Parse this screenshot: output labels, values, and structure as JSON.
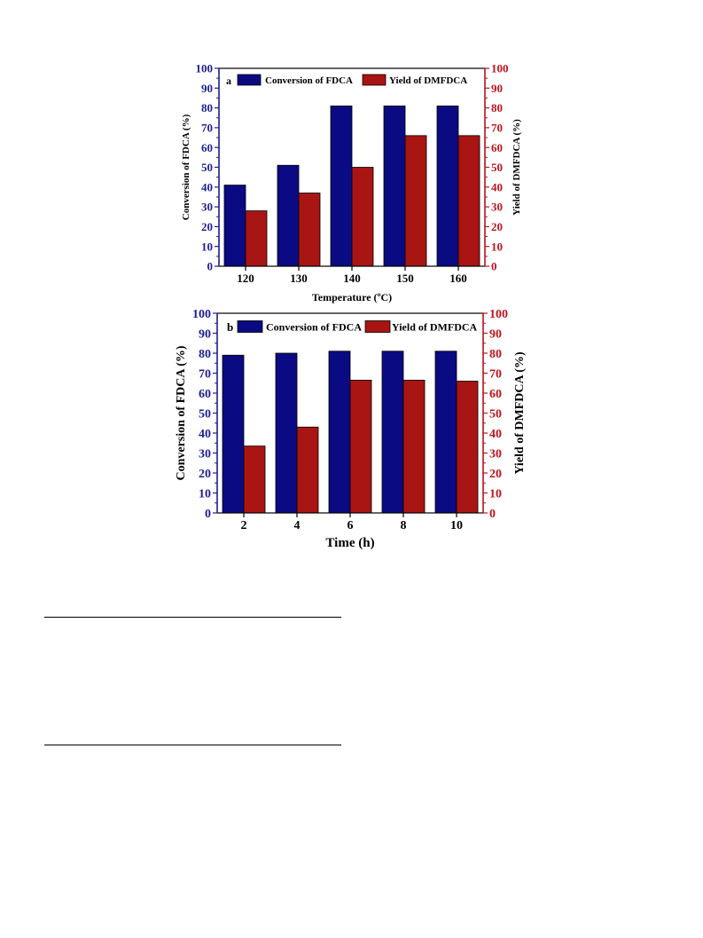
{
  "colors": {
    "left_axis": "#1e1e96",
    "right_axis": "#c0141e",
    "conversion_bar": "#0a0a82",
    "yield_bar": "#a81512"
  },
  "chart_data": [
    {
      "type": "bar",
      "panel_label": "a",
      "categories": [
        "120",
        "130",
        "140",
        "150",
        "160"
      ],
      "series": [
        {
          "name": "Conversion of FDCA",
          "axis": "left",
          "values": [
            41,
            51,
            81,
            81,
            81
          ]
        },
        {
          "name": "Yield of DMFDCA",
          "axis": "right",
          "values": [
            28,
            37,
            50,
            66,
            66
          ]
        }
      ],
      "xlabel": "Temperature (ºC)",
      "ylabel": "Conversion of FDCA (%)",
      "y2label": "Yield of DMFDCA (%)",
      "ylim": [
        0,
        100
      ],
      "y2lim": [
        0,
        100
      ],
      "yticks": [
        "0",
        "10",
        "20",
        "30",
        "40",
        "50",
        "60",
        "70",
        "80",
        "90",
        "100"
      ],
      "legend_position": "top"
    },
    {
      "type": "bar",
      "panel_label": "b",
      "categories": [
        "2",
        "4",
        "6",
        "8",
        "10"
      ],
      "series": [
        {
          "name": "Conversion of FDCA",
          "axis": "left",
          "values": [
            79,
            80,
            81,
            81,
            81
          ]
        },
        {
          "name": "Yield of DMFDCA",
          "axis": "right",
          "values": [
            33.5,
            43,
            66.5,
            66.5,
            66
          ]
        }
      ],
      "xlabel": "Time (h)",
      "ylabel": "Conversion of FDCA (%)",
      "y2label": "Yield of DMFDCA (%)",
      "ylim": [
        0,
        100
      ],
      "y2lim": [
        0,
        100
      ],
      "yticks": [
        "0",
        "10",
        "20",
        "30",
        "40",
        "50",
        "60",
        "70",
        "80",
        "90",
        "100"
      ],
      "legend_position": "top"
    }
  ]
}
